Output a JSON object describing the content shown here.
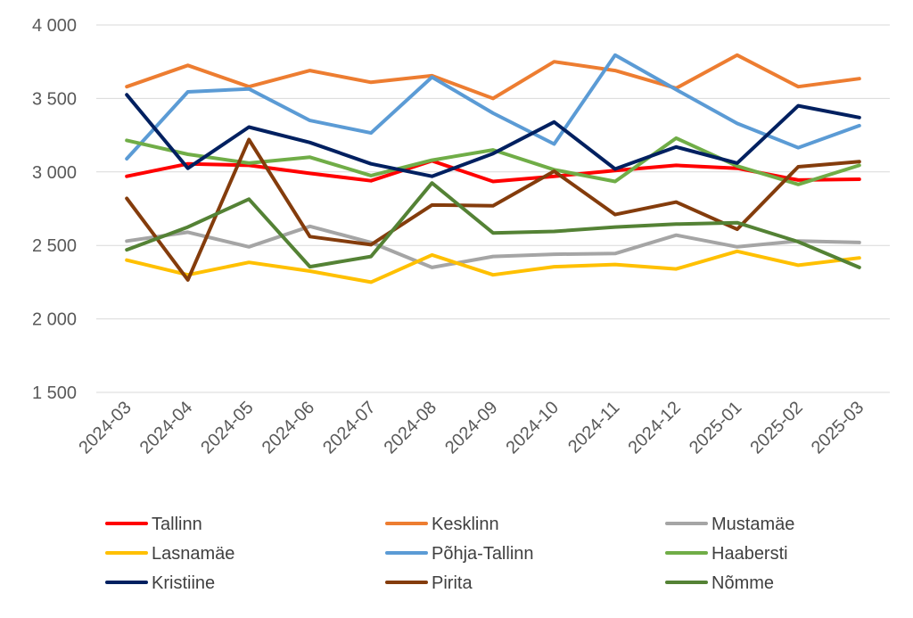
{
  "chart_data": {
    "type": "line",
    "title": "",
    "xlabel": "",
    "ylabel": "",
    "ylim": [
      1500,
      4000
    ],
    "y_ticks": [
      1500,
      2000,
      2500,
      3000,
      3500,
      4000
    ],
    "y_tick_labels": [
      "1 500",
      "2 000",
      "2 500",
      "3 000",
      "3 500",
      "4 000"
    ],
    "grid": true,
    "legend_position": "bottom",
    "categories": [
      "2024-03",
      "2024-04",
      "2024-05",
      "2024-06",
      "2024-07",
      "2024-08",
      "2024-09",
      "2024-10",
      "2024-11",
      "2024-12",
      "2025-01",
      "2025-02",
      "2025-03"
    ],
    "series": [
      {
        "name": "Tallinn",
        "color": "#ff0000",
        "values": [
          2970,
          3055,
          3045,
          2990,
          2940,
          3075,
          2935,
          2970,
          3010,
          3045,
          3025,
          2945,
          2950
        ]
      },
      {
        "name": "Kesklinn",
        "color": "#ed7d31",
        "values": [
          3580,
          3725,
          3580,
          3690,
          3610,
          3655,
          3500,
          3750,
          3690,
          3570,
          3795,
          3580,
          3635
        ]
      },
      {
        "name": "Mustamäe",
        "color": "#a5a5a5",
        "values": [
          2530,
          2590,
          2490,
          2630,
          2520,
          2350,
          2425,
          2440,
          2445,
          2570,
          2490,
          2530,
          2520
        ]
      },
      {
        "name": "Lasnamäe",
        "color": "#ffc000",
        "values": [
          2400,
          2300,
          2385,
          2325,
          2250,
          2435,
          2300,
          2355,
          2370,
          2340,
          2460,
          2365,
          2415
        ]
      },
      {
        "name": "Põhja-Tallinn",
        "color": "#5b9bd5",
        "values": [
          3090,
          3545,
          3565,
          3350,
          3265,
          3645,
          3400,
          3190,
          3795,
          3560,
          3330,
          3165,
          3315
        ]
      },
      {
        "name": "Haabersti",
        "color": "#70ad47",
        "values": [
          3215,
          3120,
          3060,
          3100,
          2975,
          3080,
          3150,
          3015,
          2935,
          3230,
          3040,
          2915,
          3045
        ]
      },
      {
        "name": "Kristiine",
        "color": "#002060",
        "values": [
          3525,
          3025,
          3305,
          3200,
          3055,
          2970,
          3125,
          3340,
          3020,
          3170,
          3060,
          3450,
          3370
        ]
      },
      {
        "name": "Pirita",
        "color": "#843c0c",
        "values": [
          2820,
          2265,
          3220,
          2560,
          2505,
          2775,
          2770,
          3005,
          2710,
          2795,
          2610,
          3035,
          3070
        ]
      },
      {
        "name": "Nõmme",
        "color": "#548235",
        "values": [
          2470,
          2625,
          2815,
          2355,
          2425,
          2925,
          2585,
          2595,
          2625,
          2645,
          2655,
          2525,
          2350
        ]
      }
    ]
  }
}
